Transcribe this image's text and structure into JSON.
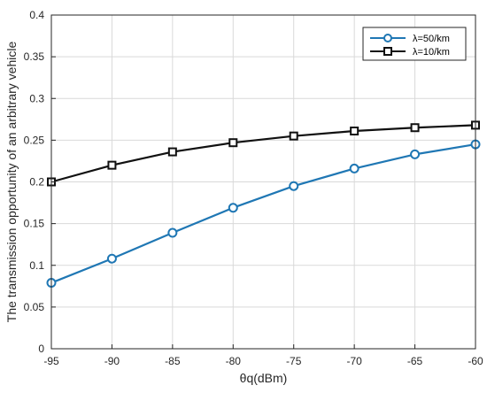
{
  "chart_data": {
    "type": "line",
    "title": "",
    "xlabel": "θq(dBm)",
    "ylabel": "The transmission opportunity of an arbitrary vehicle",
    "x": [
      -95,
      -90,
      -85,
      -80,
      -75,
      -70,
      -65,
      -60
    ],
    "xlim": [
      -95,
      -60
    ],
    "ylim": [
      0,
      0.4
    ],
    "xticks": [
      "-95",
      "-90",
      "-85",
      "-80",
      "-75",
      "-70",
      "-65",
      "-60"
    ],
    "yticks": [
      "0",
      "0.05",
      "0.1",
      "0.15",
      "0.2",
      "0.25",
      "0.3",
      "0.35",
      "0.4"
    ],
    "grid": true,
    "legend_position": "top-right",
    "series": [
      {
        "name": "λ=50/km",
        "color": "#1f77b4",
        "marker": "circle",
        "values": [
          0.079,
          0.108,
          0.139,
          0.169,
          0.195,
          0.216,
          0.233,
          0.245
        ]
      },
      {
        "name": "λ=10/km",
        "color": "#111111",
        "marker": "square",
        "values": [
          0.2,
          0.22,
          0.236,
          0.247,
          0.255,
          0.261,
          0.265,
          0.268
        ]
      }
    ]
  }
}
